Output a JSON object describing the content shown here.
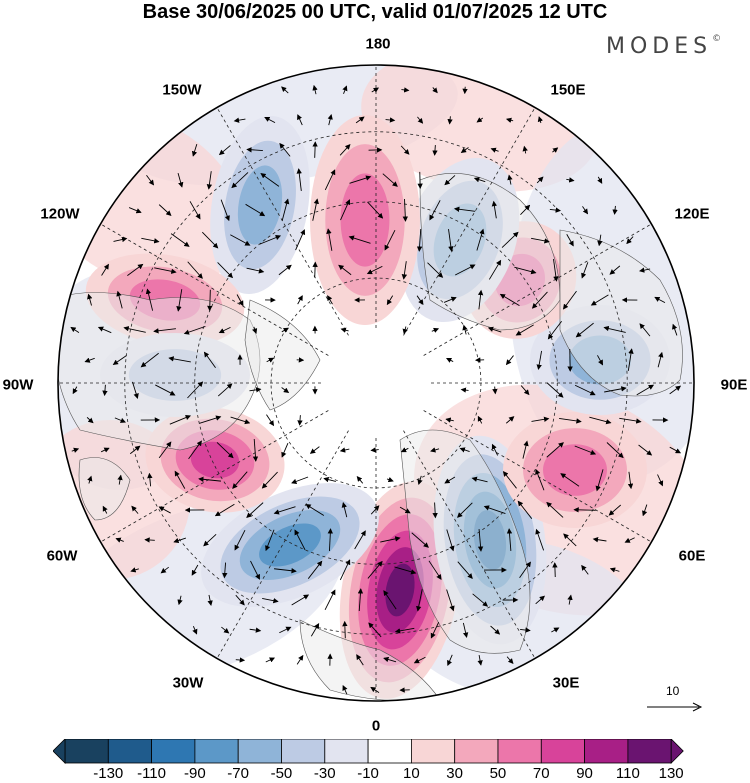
{
  "title": "Base 30/06/2025 00 UTC, valid 01/07/2025 12 UTC",
  "brand": {
    "name": "MODES",
    "mark": "©"
  },
  "longitude_labels": [
    "180",
    "150E",
    "120E",
    "90E",
    "60E",
    "30E",
    "0",
    "30W",
    "60W",
    "90W",
    "120W",
    "150W"
  ],
  "reference_vector": {
    "value": "10"
  },
  "colorbar": {
    "tick_labels": [
      "-130",
      "-110",
      "-90",
      "-70",
      "-50",
      "-30",
      "-10",
      "10",
      "30",
      "50",
      "70",
      "90",
      "110",
      "130"
    ],
    "colors": [
      "#19415f",
      "#1f5b8c",
      "#2e77b2",
      "#5c98c8",
      "#8fb4d8",
      "#bdcbe4",
      "#e2e4f0",
      "#ffffff",
      "#f8d6d6",
      "#f3a8bc",
      "#ec76aa",
      "#d8439a",
      "#a81f86",
      "#6a1470"
    ]
  },
  "map_colors": {
    "land": "#e9e9e9",
    "positive": [
      "#f8d6d6",
      "#f3a8bc",
      "#ec76aa",
      "#d8439a",
      "#a81f86",
      "#6a1470"
    ],
    "negative": [
      "#e2e4f0",
      "#bdcbe4",
      "#8fb4d8",
      "#5c98c8",
      "#2e77b2",
      "#1f5b8c"
    ]
  }
}
